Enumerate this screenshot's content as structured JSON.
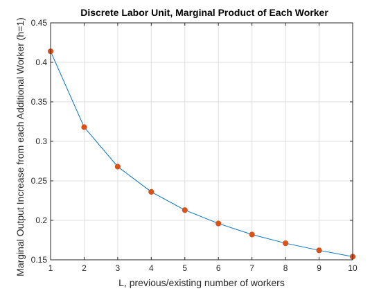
{
  "chart_data": {
    "type": "line",
    "title": "Discrete Labor Unit, Marginal Product of Each Worker",
    "xlabel": "L, previous/existing number of workers",
    "ylabel": "Marginal Output Increase from each Additional Worker (h=1)",
    "xlim": [
      1,
      10
    ],
    "ylim": [
      0.15,
      0.45
    ],
    "xticks": [
      "1",
      "2",
      "3",
      "4",
      "5",
      "6",
      "7",
      "8",
      "9",
      "10"
    ],
    "yticks": [
      "0.15",
      "0.2",
      "0.25",
      "0.3",
      "0.35",
      "0.4",
      "0.45"
    ],
    "grid": true,
    "legend": "none",
    "x": [
      1,
      2,
      3,
      4,
      5,
      6,
      7,
      8,
      9,
      10
    ],
    "series": [
      {
        "values": [
          0.414,
          0.318,
          0.268,
          0.236,
          0.213,
          0.196,
          0.182,
          0.171,
          0.162,
          0.154
        ],
        "line_color": "#0072bd",
        "marker_color": "#d95319"
      }
    ]
  }
}
